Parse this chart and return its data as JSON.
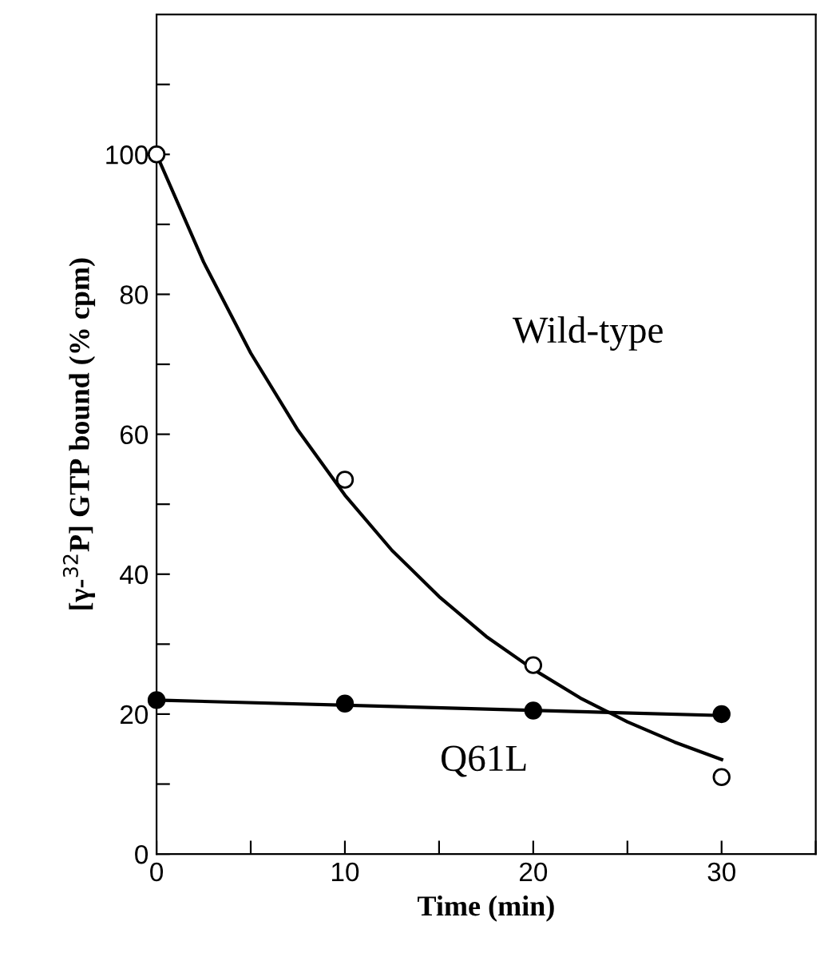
{
  "chart_data": {
    "type": "scatter",
    "xlabel": "Time (min)",
    "ylabel": "[γ-$^{32}$P] GTP bound (% cpm)",
    "xlim": [
      0,
      35
    ],
    "ylim": [
      0,
      120
    ],
    "xticks": [
      0,
      {
        "value": 5,
        "label": null
      },
      10,
      {
        "value": 15,
        "label": null
      },
      20,
      {
        "value": 25,
        "label": null
      },
      30,
      {
        "value": 35,
        "label": null
      }
    ],
    "yticks": [
      0,
      {
        "value": 10,
        "label": null
      },
      20,
      {
        "value": 30,
        "label": null
      },
      40,
      {
        "value": 50,
        "label": null
      },
      60,
      {
        "value": 70,
        "label": null
      },
      80,
      {
        "value": 90,
        "label": null
      },
      100,
      {
        "value": 110,
        "label": null
      }
    ],
    "grid": false,
    "legend": false,
    "series": [
      {
        "type": "line",
        "color": "#000000",
        "marker": "none",
        "x": [
          0,
          2.5,
          5,
          7.5,
          10,
          12.5,
          15,
          17.5,
          20,
          22.5,
          25,
          27.5,
          30
        ],
        "values": [
          100,
          84.6,
          71.6,
          60.6,
          51.3,
          43.4,
          36.8,
          31.1,
          26.4,
          22.3,
          18.9,
          16.0,
          13.5
        ]
      },
      {
        "type": "line",
        "color": "#000000",
        "marker": "none",
        "x": [
          0,
          30
        ],
        "values": [
          22,
          19.8
        ]
      },
      {
        "color": "#ffffff",
        "marker": "circle",
        "x": [
          0,
          10,
          20,
          30
        ],
        "values": [
          100,
          53.5,
          27,
          11
        ]
      },
      {
        "color": "#000000",
        "marker": "circle",
        "x": [
          0,
          10,
          20,
          30
        ],
        "values": [
          22,
          21.5,
          20.5,
          20
        ]
      }
    ],
    "annotations": [
      "Wild-type",
      "Q61L"
    ]
  }
}
